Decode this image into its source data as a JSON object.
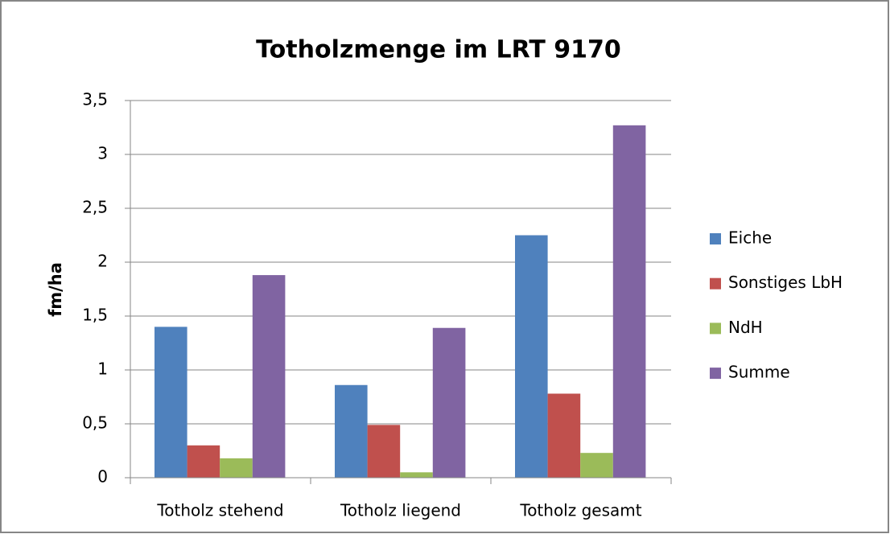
{
  "chart_data": {
    "type": "bar",
    "title": "Totholzmenge im LRT 9170",
    "y_label": "fm/ha",
    "categories": [
      "Totholz stehend",
      "Totholz liegend",
      "Totholz gesamt"
    ],
    "series": [
      {
        "name": "Eiche",
        "color": "#4f81bd",
        "values": [
          1.4,
          0.86,
          2.25
        ]
      },
      {
        "name": "Sonstiges LbH",
        "color": "#c0504d",
        "values": [
          0.3,
          0.49,
          0.78
        ]
      },
      {
        "name": "NdH",
        "color": "#9bbb59",
        "values": [
          0.18,
          0.05,
          0.23
        ]
      },
      {
        "name": "Summe",
        "color": "#8064a2",
        "values": [
          1.88,
          1.39,
          3.27
        ]
      }
    ],
    "ylim": [
      0,
      3.5
    ],
    "yticks": [
      0,
      {
        "value": 0.5,
        "label": "0,5"
      },
      1,
      {
        "value": 1.5,
        "label": "1,5"
      },
      2,
      {
        "value": 2.5,
        "label": "2,5"
      },
      3,
      {
        "value": 3.5,
        "label": "3,5"
      }
    ],
    "grid": true,
    "legend": "right"
  }
}
